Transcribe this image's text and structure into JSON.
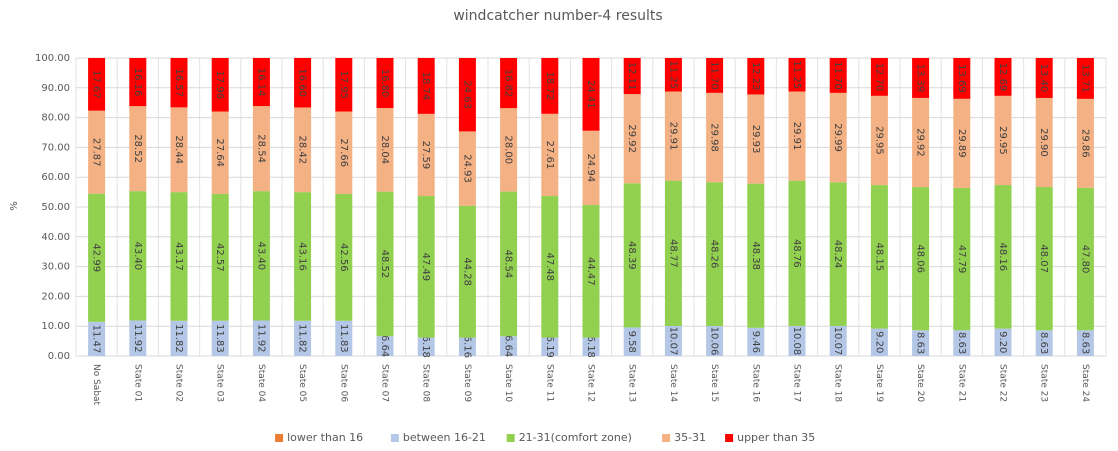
{
  "chart_data": {
    "type": "stacked_bar",
    "title": "windcatcher number-4 results",
    "y_label": "%",
    "categories": [
      "No Sabat",
      "State 01",
      "State 02",
      "State 03",
      "State 04",
      "State 05",
      "State 06",
      "State 07",
      "State 08",
      "State 09",
      "State 10",
      "State 11",
      "State 12",
      "State 13",
      "State 14",
      "State 15",
      "State 16",
      "State 17",
      "State 18",
      "State 19",
      "State 20",
      "State 21",
      "State 22",
      "State 23",
      "State 24"
    ],
    "series": [
      {
        "name": "lower than 16",
        "color": "#ed7d31",
        "values": [
          0,
          0,
          0,
          0,
          0,
          0,
          0,
          0,
          0,
          0,
          0,
          0,
          0,
          0,
          0,
          0,
          0,
          0,
          0,
          0,
          0,
          0,
          0,
          0,
          0
        ]
      },
      {
        "name": "between 16-21",
        "color": "#b4c7e7",
        "values": [
          11.47,
          11.92,
          11.82,
          11.83,
          11.92,
          11.82,
          11.83,
          6.64,
          6.18,
          6.16,
          6.64,
          6.19,
          6.18,
          9.58,
          10.07,
          10.06,
          9.46,
          10.08,
          10.07,
          9.2,
          8.63,
          8.63,
          9.2,
          8.63,
          8.63
        ],
        "value_labels": [
          "11.47",
          "11.92",
          "11.82",
          "11.83",
          "11.92",
          "11.82",
          "11.83",
          "6.64",
          "6.18",
          "6.16",
          "6.64",
          "6.19",
          "6.18",
          "9.58",
          "10.07",
          "10.06",
          "9.46",
          "10.08",
          "10.07",
          "9.20",
          "8.63",
          "8.63",
          "9.20",
          "8.63",
          "8.63"
        ]
      },
      {
        "name": "21-31(comfort zone)",
        "color": "#92d050",
        "values": [
          42.99,
          43.4,
          43.17,
          42.57,
          43.4,
          43.16,
          42.56,
          48.52,
          47.49,
          44.28,
          48.54,
          47.48,
          44.47,
          48.39,
          48.77,
          48.26,
          48.38,
          48.76,
          48.24,
          48.15,
          48.06,
          47.79,
          48.16,
          48.07,
          47.8
        ],
        "value_labels": [
          "42.99",
          "43.40",
          "43.17",
          "42.57",
          "43.40",
          "43.16",
          "42.56",
          "48.52",
          "47.49",
          "44.28",
          "48.54",
          "47.48",
          "44.47",
          "48.39",
          "48.77",
          "48.26",
          "48.38",
          "48.76",
          "48.24",
          "48.15",
          "48.06",
          "47.79",
          "48.16",
          "48.07",
          "47.80"
        ]
      },
      {
        "name": "35-31",
        "color": "#f4b183",
        "values": [
          27.87,
          28.52,
          28.44,
          27.64,
          28.54,
          28.42,
          27.66,
          28.04,
          27.59,
          24.93,
          28.0,
          27.61,
          24.94,
          29.92,
          29.91,
          29.98,
          29.93,
          29.91,
          29.99,
          29.95,
          29.92,
          29.89,
          29.95,
          29.9,
          29.86
        ],
        "value_labels": [
          "27.87",
          "28.52",
          "28.44",
          "27.64",
          "28.54",
          "28.42",
          "27.66",
          "28.04",
          "27.59",
          "24.93",
          "28.00",
          "27.61",
          "24.94",
          "29.92",
          "29.91",
          "29.98",
          "29.93",
          "29.91",
          "29.99",
          "29.95",
          "29.92",
          "29.89",
          "29.95",
          "29.90",
          "29.86"
        ]
      },
      {
        "name": "upper than 35",
        "color": "#ff0000",
        "values": [
          17.67,
          16.16,
          16.57,
          17.96,
          16.14,
          16.6,
          17.95,
          16.8,
          18.74,
          24.63,
          16.82,
          18.72,
          24.41,
          12.11,
          11.25,
          11.7,
          12.23,
          11.25,
          11.7,
          12.7,
          13.39,
          13.69,
          12.69,
          13.4,
          13.71
        ],
        "value_labels": [
          "17.67",
          "16.16",
          "16.57",
          "17.96",
          "16.14",
          "16.60",
          "17.95",
          "16.80",
          "18.74",
          "24.63",
          "16.82",
          "18.72",
          "24.41",
          "12.11",
          "11.25",
          "11.70",
          "12.23",
          "11.25",
          "11.70",
          "12.70",
          "13.39",
          "13.69",
          "12.69",
          "13.40",
          "13.71"
        ]
      }
    ],
    "ylim": [
      0,
      100
    ],
    "yticks": [
      {
        "value": 0,
        "label": "0.00"
      },
      {
        "value": 10,
        "label": "10.00"
      },
      {
        "value": 20,
        "label": "20.00"
      },
      {
        "value": 30,
        "label": "30.00"
      },
      {
        "value": 40,
        "label": "40.00"
      },
      {
        "value": 50,
        "label": "50.00"
      },
      {
        "value": 60,
        "label": "60.00"
      },
      {
        "value": 70,
        "label": "70.00"
      },
      {
        "value": 80,
        "label": "80.00"
      },
      {
        "value": 90,
        "label": "90.00"
      },
      {
        "value": 100,
        "label": "100.00"
      }
    ],
    "grid": true,
    "legend": "bottom"
  }
}
